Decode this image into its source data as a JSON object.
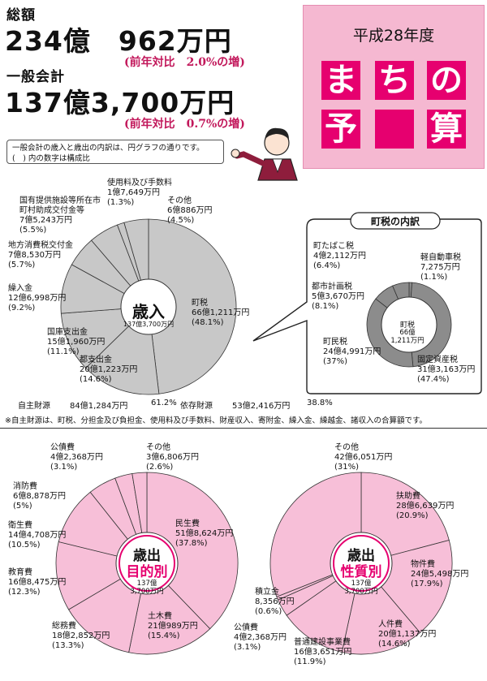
{
  "summary": {
    "total_label": "総額",
    "total_value": "234億　962万円",
    "total_change": "(前年対比　2.0%の増)",
    "general_label": "一般会計",
    "general_value": "137億3,700万円",
    "general_change": "(前年対比　0.7%の増)"
  },
  "badge": {
    "year": "平成28年度",
    "chars": [
      "ま",
      "ち",
      "の",
      "予",
      "",
      "算"
    ]
  },
  "note": {
    "line1": "一般会計の歳入と歳出の内訳は、円グラフの通りです。",
    "line2": "(　) 内の数字は構成比"
  },
  "independent": {
    "label1": "自主財源",
    "value1": "84億1,284万円",
    "pct1": "61.2%",
    "label2": "依存財源",
    "value2": "53億2,416万円",
    "pct2": "38.8%"
  },
  "footnote": "※自主財源は、町税、分担金及び負担金、使用料及び手数料、財産収入、寄附金、繰入金、繰越金、諸収入の合算額です。",
  "town_tax_title": "町税の内訳",
  "colors": {
    "revenue": "#c8c8c8",
    "town_tax": "#8c8c8c",
    "expense": "#f7bfd8",
    "accent": "#e6006f"
  },
  "chart_data": [
    {
      "type": "pie",
      "title": "歳入",
      "center_sub": "137億3,700万円",
      "categories": [
        "町税",
        "都支出金",
        "国庫支出金",
        "繰入金",
        "地方消費税交付金",
        "国有提供施設等所在市町村助成交付金等",
        "使用料及び手数料",
        "その他"
      ],
      "amounts": [
        "66億1,211万円",
        "20億1,223万円",
        "15億1,960万円",
        "12億6,998万円",
        "7億8,530万円",
        "7億5,243万円",
        "1億7,649万円",
        "6億886万円"
      ],
      "values": [
        48.1,
        14.6,
        11.1,
        9.2,
        5.7,
        5.5,
        1.3,
        4.5
      ]
    },
    {
      "type": "pie",
      "title": "町税",
      "center_sub": "66億\n1,211万円",
      "categories": [
        "軽自動車税",
        "固定資産税",
        "町民税",
        "都市計画税",
        "町たばこ税"
      ],
      "amounts": [
        "7,275万円",
        "31億3,163万円",
        "24億4,991万円",
        "5億3,670万円",
        "4億2,112万円"
      ],
      "values": [
        1.1,
        47.4,
        37.0,
        8.1,
        6.4
      ]
    },
    {
      "type": "pie",
      "title": "歳出",
      "title2": "目的別",
      "center_sub": "137億\n3,700万円",
      "categories": [
        "民生費",
        "土木費",
        "総務費",
        "教育費",
        "衛生費",
        "消防費",
        "公債費",
        "その他"
      ],
      "amounts": [
        "51億8,624万円",
        "21億989万円",
        "18億2,852万円",
        "16億8,475万円",
        "14億4,708万円",
        "6億8,878万円",
        "4億2,368万円",
        "3億6,806万円"
      ],
      "values": [
        37.8,
        15.4,
        13.3,
        12.3,
        10.5,
        5.0,
        3.1,
        2.6
      ]
    },
    {
      "type": "pie",
      "title": "歳出",
      "title2": "性質別",
      "center_sub": "137億\n3,700万円",
      "categories": [
        "扶助費",
        "物件費",
        "人件費",
        "普通建設事業費",
        "公債費",
        "積立金",
        "その他"
      ],
      "amounts": [
        "28億6,639万円",
        "24億5,498万円",
        "20億1,137万円",
        "16億3,651万円",
        "4億2,368万円",
        "8,356万円",
        "42億6,051万円"
      ],
      "values": [
        20.9,
        17.9,
        14.6,
        11.9,
        3.1,
        0.6,
        31.0
      ]
    }
  ]
}
